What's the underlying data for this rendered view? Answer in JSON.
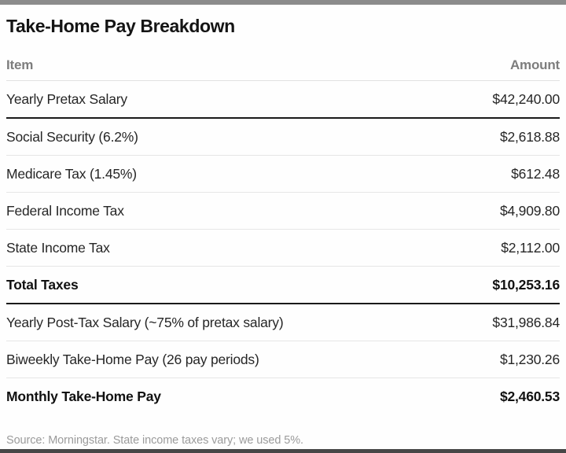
{
  "title": "Take-Home Pay Breakdown",
  "colors": {
    "top_bar": "#8c8c8c",
    "bottom_bar": "#474747",
    "thick_rule": "#1a1a1a",
    "thin_rule": "#e6e6e6",
    "header_text": "#7d7d7d",
    "body_text": "#262626",
    "source_text": "#9b9b9b"
  },
  "chart_data": {
    "type": "table",
    "title": "Take-Home Pay Breakdown",
    "columns": [
      "Item",
      "Amount"
    ],
    "rows": [
      {
        "item": "Yearly Pretax Salary",
        "amount": "$42,240.00",
        "value": 42240.0,
        "emphasis": false,
        "rule_after": "thick"
      },
      {
        "item": "Social Security (6.2%)",
        "amount": "$2,618.88",
        "value": 2618.88,
        "emphasis": false,
        "rule_after": "thin"
      },
      {
        "item": "Medicare Tax (1.45%)",
        "amount": "$612.48",
        "value": 612.48,
        "emphasis": false,
        "rule_after": "thin"
      },
      {
        "item": "Federal Income Tax",
        "amount": "$4,909.80",
        "value": 4909.8,
        "emphasis": false,
        "rule_after": "thin"
      },
      {
        "item": "State Income Tax",
        "amount": "$2,112.00",
        "value": 2112.0,
        "emphasis": false,
        "rule_after": "thin"
      },
      {
        "item": "Total Taxes",
        "amount": "$10,253.16",
        "value": 10253.16,
        "emphasis": true,
        "rule_after": "thick"
      },
      {
        "item": "Yearly Post-Tax Salary (~75% of pretax salary)",
        "amount": "$31,986.84",
        "value": 31986.84,
        "emphasis": false,
        "rule_after": "thin"
      },
      {
        "item": "Biweekly Take-Home Pay (26 pay periods)",
        "amount": "$1,230.26",
        "value": 1230.26,
        "emphasis": false,
        "rule_after": "thin"
      },
      {
        "item": "Monthly Take-Home Pay",
        "amount": "$2,460.53",
        "value": 2460.53,
        "emphasis": true,
        "rule_after": "none"
      }
    ],
    "source_note": "Source: Morningstar. State income taxes vary; we used 5%."
  }
}
